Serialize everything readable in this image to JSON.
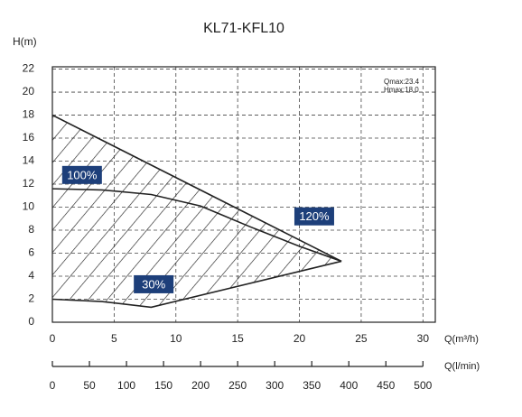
{
  "chart_data": {
    "type": "line",
    "title": "KL71-KFL10",
    "y_label": "H(m)",
    "x_label": "Q(m³/h)",
    "x2_label": "Q(l/min)",
    "annotations": [
      "Qmax:23.4",
      "Hmax:18.0"
    ],
    "xlim": [
      0,
      31
    ],
    "xticks": [
      0,
      5,
      10,
      15,
      20,
      25,
      30
    ],
    "ylim": [
      0,
      22.2
    ],
    "yticks": [
      0,
      2,
      4,
      6,
      8,
      10,
      12,
      14,
      16,
      18,
      20,
      22
    ],
    "x2lim": [
      0,
      516.7
    ],
    "x2ticks": [
      0,
      50,
      100,
      150,
      200,
      250,
      300,
      350,
      400,
      450,
      500
    ],
    "grid": true,
    "hatch": true,
    "series": [
      {
        "name": "120%",
        "color": "#222222",
        "x": [
          0,
          23.4
        ],
        "values": [
          18.0,
          5.3
        ]
      },
      {
        "name": "100%",
        "color": "#222222",
        "x": [
          0,
          4,
          8,
          12,
          16,
          20,
          23.4
        ],
        "values": [
          11.6,
          11.5,
          11.1,
          10.1,
          8.3,
          6.6,
          5.3
        ]
      },
      {
        "name": "30%",
        "color": "#222222",
        "x": [
          0,
          4,
          8,
          23.4
        ],
        "values": [
          2.0,
          1.8,
          1.3,
          5.3
        ]
      }
    ]
  }
}
